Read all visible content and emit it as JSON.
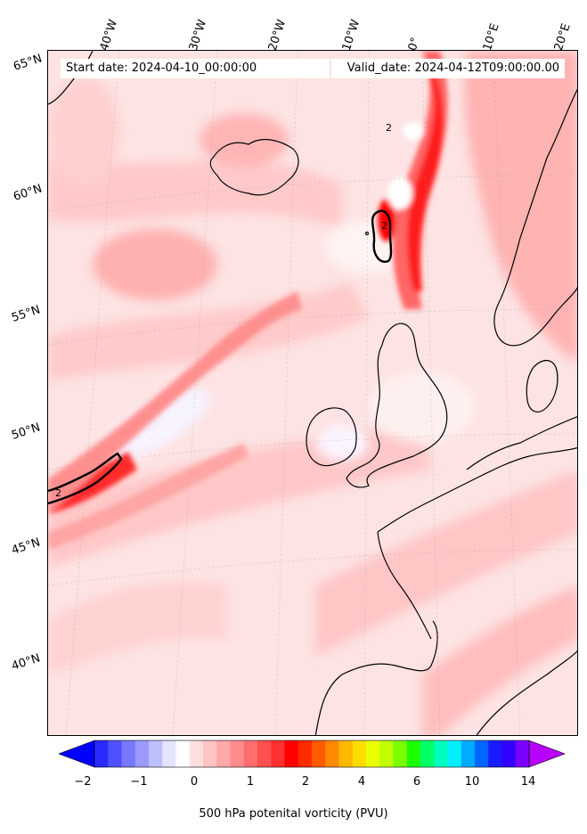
{
  "header": {
    "start_date": "Start date: 2024-04-10_00:00:00",
    "valid_date": "Valid_date: 2024-04-12T09:00:00.00"
  },
  "lon_labels": [
    "40°W",
    "30°W",
    "20°W",
    "10°W",
    "0°",
    "10°E",
    "20°E"
  ],
  "lat_labels": [
    "65°N",
    "60°N",
    "55°N",
    "50°N",
    "45°N",
    "40°N"
  ],
  "contour_labels": [
    "2",
    "2",
    "2"
  ],
  "colorbar": {
    "label": "500 hPa potenital vorticity (PVU)",
    "tick_labels": [
      "−2",
      "−1",
      "0",
      "1",
      "2",
      "4",
      "6",
      "10",
      "14"
    ],
    "colors": [
      "#0000ff",
      "#2a2aff",
      "#5050ff",
      "#7777ff",
      "#9a9aff",
      "#bfbfff",
      "#e4e4ff",
      "#ffffff",
      "#ffdede",
      "#ffc4c4",
      "#ffa8a8",
      "#ff8c8c",
      "#ff6e6e",
      "#ff4f4f",
      "#ff3030",
      "#ff0000",
      "#ff2b00",
      "#ff5a00",
      "#ff8a00",
      "#ffb800",
      "#ffdd00",
      "#eaff00",
      "#bfff00",
      "#7aff00",
      "#1cff00",
      "#00ff66",
      "#00ffbf",
      "#00eeff",
      "#00aaff",
      "#0066ff",
      "#1a1aff",
      "#3300ff",
      "#7a00ff",
      "#b800ff"
    ]
  }
}
